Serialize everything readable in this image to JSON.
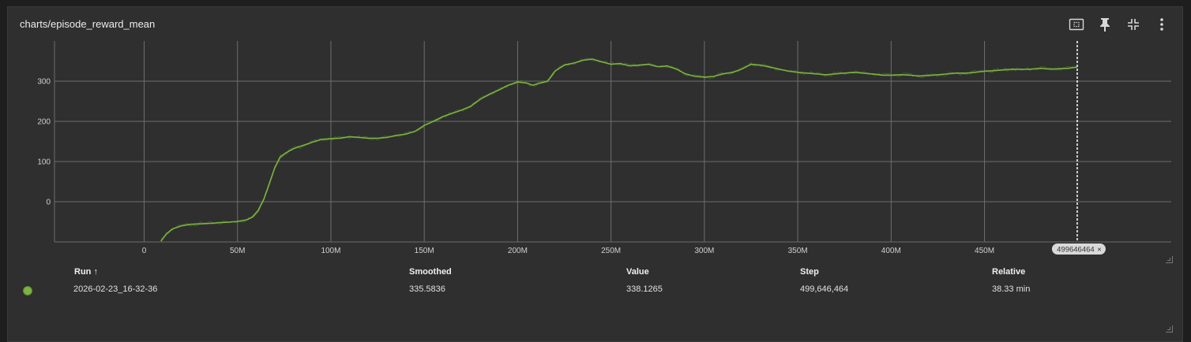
{
  "card": {
    "title": "charts/episode_reward_mean"
  },
  "toolbar": {
    "fit_icon": "fit-domain-icon",
    "pin_icon": "pin-icon",
    "collapse_icon": "collapse-icon",
    "more_icon": "more-vert-icon"
  },
  "colors": {
    "series": "#7cb342",
    "grid": "#6e6e6e",
    "background": "#2f2f2f"
  },
  "chart_data": {
    "type": "line",
    "xlim": [
      -48000000,
      550000000
    ],
    "ylim": [
      -100,
      400
    ],
    "x_ticks": [
      0,
      50000000,
      100000000,
      150000000,
      200000000,
      250000000,
      300000000,
      350000000,
      400000000,
      450000000
    ],
    "x_tick_labels": [
      "0",
      "50M",
      "100M",
      "150M",
      "200M",
      "250M",
      "300M",
      "350M",
      "400M",
      "450M"
    ],
    "y_ticks": [
      0,
      100,
      200,
      300
    ],
    "y_tick_labels": [
      "0",
      "100",
      "200",
      "300"
    ],
    "hover_step": 499646464,
    "hover_label": "499646464",
    "series": [
      {
        "x": [
          9000000,
          12000000,
          15000000,
          20000000,
          25000000,
          30000000,
          35000000,
          40000000,
          45000000,
          50000000,
          55000000,
          58000000,
          61000000,
          64000000,
          67000000,
          70000000,
          73000000,
          76000000,
          80000000,
          85000000,
          90000000,
          95000000,
          100000000,
          105000000,
          110000000,
          115000000,
          120000000,
          125000000,
          130000000,
          135000000,
          140000000,
          145000000,
          150000000,
          155000000,
          160000000,
          165000000,
          170000000,
          175000000,
          180000000,
          185000000,
          190000000,
          195000000,
          200000000,
          205000000,
          208000000,
          212000000,
          216000000,
          220000000,
          225000000,
          230000000,
          235000000,
          240000000,
          245000000,
          250000000,
          255000000,
          260000000,
          265000000,
          270000000,
          275000000,
          280000000,
          285000000,
          290000000,
          295000000,
          300000000,
          305000000,
          310000000,
          315000000,
          320000000,
          325000000,
          330000000,
          335000000,
          340000000,
          345000000,
          350000000,
          355000000,
          360000000,
          365000000,
          370000000,
          375000000,
          380000000,
          385000000,
          390000000,
          395000000,
          400000000,
          405000000,
          410000000,
          415000000,
          420000000,
          425000000,
          430000000,
          435000000,
          440000000,
          445000000,
          450000000,
          455000000,
          460000000,
          465000000,
          470000000,
          475000000,
          480000000,
          485000000,
          490000000,
          495000000,
          499646464
        ],
        "values": [
          -98,
          -80,
          -68,
          -60,
          -56,
          -55,
          -54,
          -52,
          -51,
          -49,
          -45,
          -38,
          -22,
          5,
          45,
          85,
          112,
          122,
          132,
          140,
          148,
          155,
          157,
          158,
          162,
          160,
          158,
          158,
          160,
          165,
          168,
          175,
          190,
          200,
          212,
          220,
          228,
          238,
          255,
          268,
          278,
          290,
          298,
          295,
          290,
          295,
          300,
          325,
          340,
          345,
          352,
          355,
          348,
          342,
          344,
          338,
          340,
          342,
          336,
          338,
          330,
          318,
          312,
          310,
          312,
          318,
          322,
          330,
          342,
          340,
          335,
          330,
          325,
          322,
          320,
          318,
          316,
          318,
          320,
          322,
          320,
          318,
          315,
          315,
          316,
          315,
          313,
          314,
          316,
          318,
          320,
          320,
          322,
          325,
          326,
          328,
          330,
          329,
          330,
          332,
          330,
          331,
          332,
          335.58
        ]
      }
    ]
  },
  "runs_table": {
    "headers": {
      "run": "Run ↑",
      "smoothed": "Smoothed",
      "value": "Value",
      "step": "Step",
      "relative": "Relative"
    },
    "rows": [
      {
        "run": "2026-02-23_16-32-36",
        "smoothed": "335.5836",
        "value": "338.1265",
        "step": "499,646,464",
        "relative": "38.33 min"
      }
    ]
  }
}
